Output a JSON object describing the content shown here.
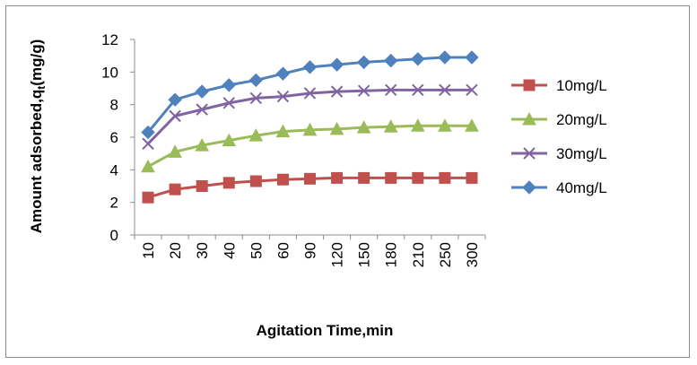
{
  "chart_data": {
    "type": "line",
    "categories": [
      "10",
      "20",
      "30",
      "40",
      "50",
      "60",
      "90",
      "120",
      "150",
      "180",
      "210",
      "250",
      "300"
    ],
    "xlabel": "Agitation Time,min",
    "ylabel": "Amount adsorbed,q",
    "ylabel_subscript": "t",
    "ylabel_suffix": "(mg/g)",
    "ylim": [
      0,
      12
    ],
    "yticks": [
      "0",
      "2",
      "4",
      "6",
      "8",
      "10",
      "12"
    ],
    "grid": false,
    "legend_position": "right",
    "series": [
      {
        "name": "10mg/L",
        "color": "#c0504d",
        "marker": "square",
        "values": [
          2.3,
          2.8,
          3.0,
          3.2,
          3.3,
          3.4,
          3.45,
          3.5,
          3.5,
          3.5,
          3.5,
          3.5,
          3.5
        ]
      },
      {
        "name": "20mg/L",
        "color": "#9bbb59",
        "marker": "triangle",
        "values": [
          4.2,
          5.1,
          5.5,
          5.8,
          6.1,
          6.35,
          6.45,
          6.5,
          6.6,
          6.65,
          6.7,
          6.7,
          6.7
        ]
      },
      {
        "name": "30mg/L",
        "color": "#8064a2",
        "marker": "x",
        "values": [
          5.6,
          7.3,
          7.7,
          8.1,
          8.4,
          8.5,
          8.7,
          8.8,
          8.85,
          8.9,
          8.9,
          8.9,
          8.9
        ]
      },
      {
        "name": "40mg/L",
        "color": "#4f81bd",
        "marker": "diamond",
        "values": [
          6.3,
          8.3,
          8.8,
          9.2,
          9.5,
          9.9,
          10.3,
          10.45,
          10.6,
          10.7,
          10.8,
          10.9,
          10.9
        ]
      }
    ]
  }
}
